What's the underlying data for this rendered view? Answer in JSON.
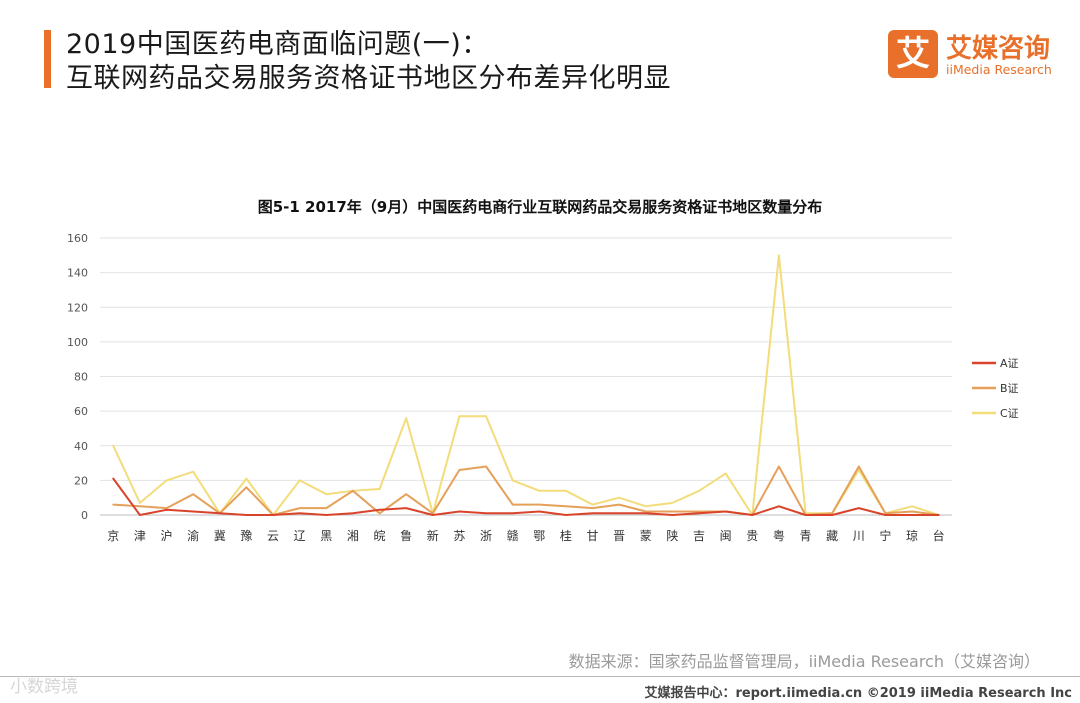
{
  "header": {
    "title_line1": "2019中国医药电商面临问题(一)：",
    "title_line2": "互联网药品交易服务资格证书地区分布差异化明显"
  },
  "logo": {
    "mark": "艾",
    "name_cn": "艾媒咨询",
    "name_en": "iiMedia Research"
  },
  "colors": {
    "accent": "#e8702a",
    "series_a": "#d9432a",
    "series_b": "#e5a05a",
    "series_c": "#f3dc7a",
    "grid": "#e2e2e2"
  },
  "chart_data": {
    "type": "line",
    "title": "图5-1 2017年（9月）中国医药电商行业互联网药品交易服务资格证书地区数量分布",
    "xlabel": "",
    "ylabel": "",
    "ylim": [
      0,
      160
    ],
    "yticks": [
      0,
      20,
      40,
      60,
      80,
      100,
      120,
      140,
      160
    ],
    "grid": true,
    "legend_position": "right",
    "categories": [
      "京",
      "津",
      "沪",
      "渝",
      "冀",
      "豫",
      "云",
      "辽",
      "黑",
      "湘",
      "皖",
      "鲁",
      "新",
      "苏",
      "浙",
      "赣",
      "鄂",
      "桂",
      "甘",
      "晋",
      "蒙",
      "陕",
      "吉",
      "闽",
      "贵",
      "粤",
      "青",
      "藏",
      "川",
      "宁",
      "琼",
      "台"
    ],
    "series": [
      {
        "name": "A证",
        "values": [
          21,
          0,
          3,
          2,
          1,
          0,
          0,
          1,
          0,
          1,
          3,
          4,
          0,
          2,
          1,
          1,
          2,
          0,
          1,
          1,
          1,
          0,
          1,
          2,
          0,
          5,
          0,
          0,
          4,
          0,
          0,
          0
        ]
      },
      {
        "name": "B证",
        "values": [
          6,
          5,
          4,
          12,
          1,
          16,
          0,
          4,
          4,
          14,
          1,
          12,
          1,
          26,
          28,
          6,
          6,
          5,
          4,
          6,
          2,
          2,
          2,
          2,
          0,
          28,
          0,
          1,
          28,
          1,
          2,
          0
        ]
      },
      {
        "name": "C证",
        "values": [
          40,
          7,
          20,
          25,
          1,
          21,
          0,
          20,
          12,
          14,
          15,
          56,
          1,
          57,
          57,
          20,
          14,
          14,
          6,
          10,
          5,
          7,
          14,
          24,
          0,
          150,
          1,
          1,
          26,
          1,
          5,
          0
        ]
      }
    ]
  },
  "source": "数据来源：国家药品监督管理局，iiMedia Research（艾媒咨询）",
  "footer": "艾媒报告中心：report.iimedia.cn ©2019 iiMedia Research Inc",
  "watermark": "小数跨境"
}
